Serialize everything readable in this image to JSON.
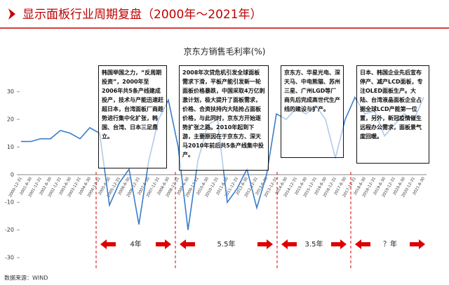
{
  "header": {
    "title": "显示面板行业周期复盘（2000年～2021年）"
  },
  "chart_data": {
    "type": "line",
    "title": "京东方销售毛利率(%)",
    "categories": [
      "2000-12-31",
      "2001-6-30",
      "2001-12-31",
      "2002-6-30",
      "2002-12-31",
      "2003-6-30",
      "2003-12-31",
      "2004-6-30",
      "2004-12-31",
      "2005-6-30",
      "2005-12-31",
      "2006-6-30",
      "2006-12-31",
      "2007-6-30",
      "2007-12-31",
      "2008-6-30",
      "2008-12-31",
      "2009-6-30",
      "2009-12-31",
      "2010-6-30",
      "2010-12-31",
      "2011-6-30",
      "2011-12-31",
      "2012-6-30",
      "2012-12-31",
      "2013-6-30",
      "2013-12-31",
      "2014-6-30",
      "2014-12-31",
      "2015-6-30",
      "2015-12-31",
      "2016-6-30",
      "2016-12-31",
      "2017-6-30",
      "2017-12-31",
      "2018-6-30",
      "2018-12-31",
      "2019-6-30",
      "2019-12-31",
      "2020-6-30",
      "2020-12-31",
      "2021-6-30"
    ],
    "series": [
      {
        "name": "京东方销售毛利率",
        "color": "#3a7dc9",
        "values": [
          12,
          12,
          13,
          13,
          16,
          15,
          13,
          17,
          15,
          -11,
          -3,
          2,
          -18,
          5,
          20,
          27,
          10,
          -20,
          5,
          18,
          20,
          -10,
          -5,
          2,
          -12,
          0,
          22,
          20,
          24,
          22,
          25,
          20,
          6,
          20,
          28,
          22,
          23,
          14,
          18,
          22,
          20,
          28
        ]
      }
    ],
    "ylim": [
      -30,
      35
    ],
    "yticks": [
      -30,
      -20,
      -10,
      0,
      10,
      20,
      30
    ],
    "grid": false,
    "annotations": [
      "韩国举国之力，“反周期投资”，2000年至2006年共5条产线建成投产，技术与产能迅速赶超日本，台湾面板厂商趁势进行集中化扩张，韩国、台湾、日本三足鼎立。",
      "2008年次贷危机引发全球面板需求下滑，平板产能引发新一轮面板价格暴跌，中国采取4万亿刺激计划，极大提升了面板需求，价格、合资扶持内大陆抢占面板价格，与此同时，京东方开始逐势扩张之路。2010年起到下游，主要原因在于京东方、深天马2010年前后共5条产线集中投产。",
      "京东方、华星光电、深天马、中电熊猫、苏州三星、广州LGD等厂商先后完成高世代生产线的建设与扩产。",
      "日本、韩国企业先后宣布停产、减产LCD面板，专注OLED面板生产。大陆、台湾液晶面板企业占据全球LCD产能第一位置，另外，新冠疫情催生远程办公需求，面板景气度回暖。"
    ],
    "cycles": [
      "4年",
      "5.5年",
      "3.5年",
      "？年"
    ],
    "source": "数据来源：WIND"
  }
}
